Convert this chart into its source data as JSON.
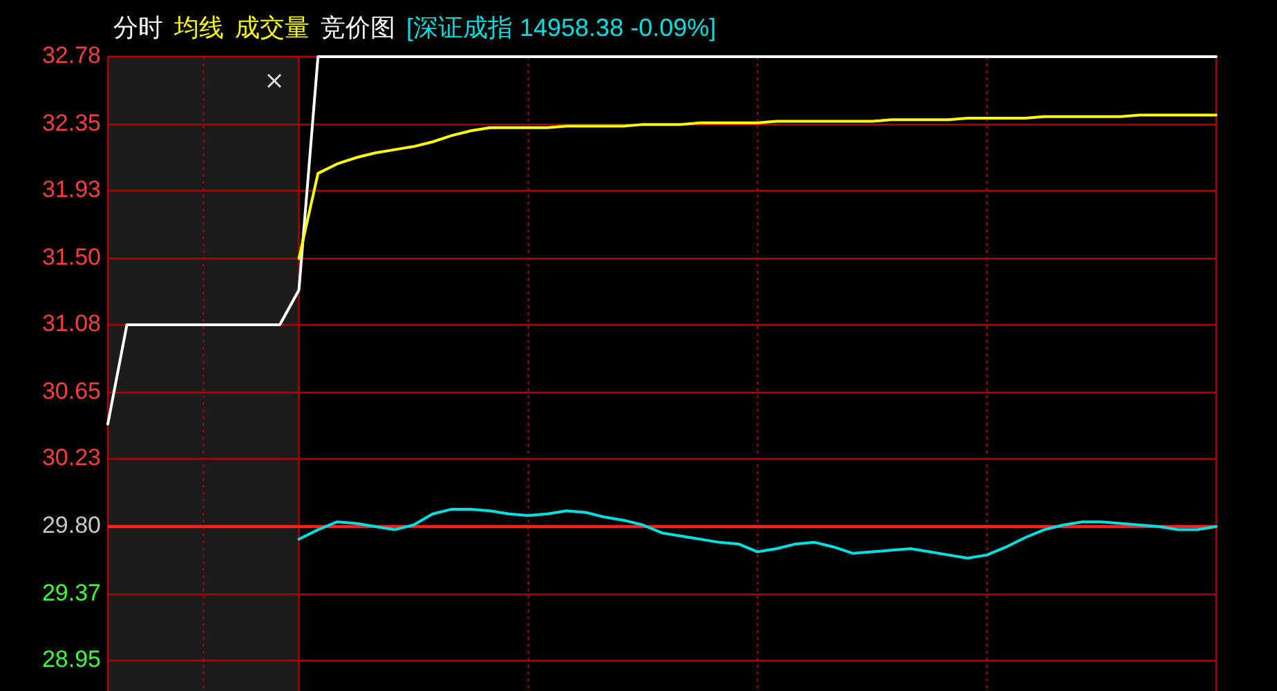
{
  "chart_data": {
    "type": "line",
    "categories": [
      null,
      null,
      null,
      null,
      null,
      null,
      null,
      null,
      null,
      null,
      null,
      null,
      null,
      null,
      null,
      null,
      null,
      null,
      null,
      null,
      null,
      null,
      null,
      null,
      null,
      null,
      null,
      null,
      null,
      null,
      null,
      null,
      null,
      null,
      null,
      null,
      null,
      null,
      null,
      null,
      null,
      null,
      null,
      null,
      null,
      null,
      null,
      null,
      null,
      null,
      null,
      null,
      null,
      null,
      null,
      null,
      null,
      null,
      null
    ],
    "series": [
      {
        "color": "#ffffff",
        "values": [
          30.45,
          31.08,
          31.08,
          31.08,
          31.08,
          31.08,
          31.08,
          31.08,
          31.08,
          31.08,
          31.3,
          32.78,
          32.78,
          32.78,
          32.78,
          32.78,
          32.78,
          32.78,
          32.78,
          32.78,
          32.78,
          32.78,
          32.78,
          32.78,
          32.78,
          32.78,
          32.78,
          32.78,
          32.78,
          32.78,
          32.78,
          32.78,
          32.78,
          32.78,
          32.78,
          32.78,
          32.78,
          32.78,
          32.78,
          32.78,
          32.78,
          32.78,
          32.78,
          32.78,
          32.78,
          32.78,
          32.78,
          32.78,
          32.78,
          32.78,
          32.78,
          32.78,
          32.78,
          32.78,
          32.78,
          32.78,
          32.78,
          32.78,
          32.78
        ]
      },
      {
        "name": "均线",
        "color": "#ffff00",
        "values": [
          null,
          null,
          null,
          null,
          null,
          null,
          null,
          null,
          null,
          null,
          31.5,
          32.04,
          32.1,
          32.14,
          32.17,
          32.19,
          32.21,
          32.24,
          32.28,
          32.31,
          32.33,
          32.33,
          32.33,
          32.33,
          32.34,
          32.34,
          32.34,
          32.34,
          32.35,
          32.35,
          32.35,
          32.36,
          32.36,
          32.36,
          32.36,
          32.37,
          32.37,
          32.37,
          32.37,
          32.37,
          32.37,
          32.38,
          32.38,
          32.38,
          32.38,
          32.39,
          32.39,
          32.39,
          32.39,
          32.4,
          32.4,
          32.4,
          32.4,
          32.4,
          32.41,
          32.41,
          32.41,
          32.41,
          32.41
        ]
      },
      {
        "name": "[深证成指 14958.38 -0.09%]",
        "color": "#00e0e0",
        "values": [
          null,
          null,
          null,
          null,
          null,
          null,
          null,
          null,
          null,
          null,
          29.72,
          29.78,
          29.83,
          29.82,
          29.8,
          29.78,
          29.81,
          29.88,
          29.91,
          29.91,
          29.9,
          29.88,
          29.87,
          29.88,
          29.9,
          29.89,
          29.86,
          29.84,
          29.81,
          29.76,
          29.74,
          29.72,
          29.7,
          29.69,
          29.64,
          29.66,
          29.69,
          29.7,
          29.67,
          29.63,
          29.64,
          29.65,
          29.66,
          29.64,
          29.62,
          29.6,
          29.62,
          29.67,
          29.73,
          29.78,
          29.81,
          29.83,
          29.83,
          29.82,
          29.81,
          29.8,
          29.78,
          29.78,
          29.8
        ]
      }
    ],
    "ylim": [
      28.95,
      32.78
    ],
    "yticks": [
      {
        "value": 32.78,
        "label": "32.78"
      },
      {
        "value": 32.35,
        "label": "32.35"
      },
      {
        "value": 31.93,
        "label": "31.93"
      },
      {
        "value": 31.5,
        "label": "31.50"
      },
      {
        "value": 31.08,
        "label": "31.08"
      },
      {
        "value": 30.65,
        "label": "30.65"
      },
      {
        "value": 30.23,
        "label": "30.23"
      },
      {
        "value": 29.8,
        "label": "29.80"
      },
      {
        "value": 29.37,
        "label": "29.37"
      },
      {
        "value": 28.95,
        "label": "28.95"
      }
    ],
    "ref_lines": [
      {
        "axis": "y",
        "value": 29.8,
        "color": "#ff2020"
      }
    ],
    "annotations": [
      "分时",
      "成交量",
      "竞价图"
    ],
    "grid": true,
    "legend": "top left",
    "tick_labels": "y"
  }
}
